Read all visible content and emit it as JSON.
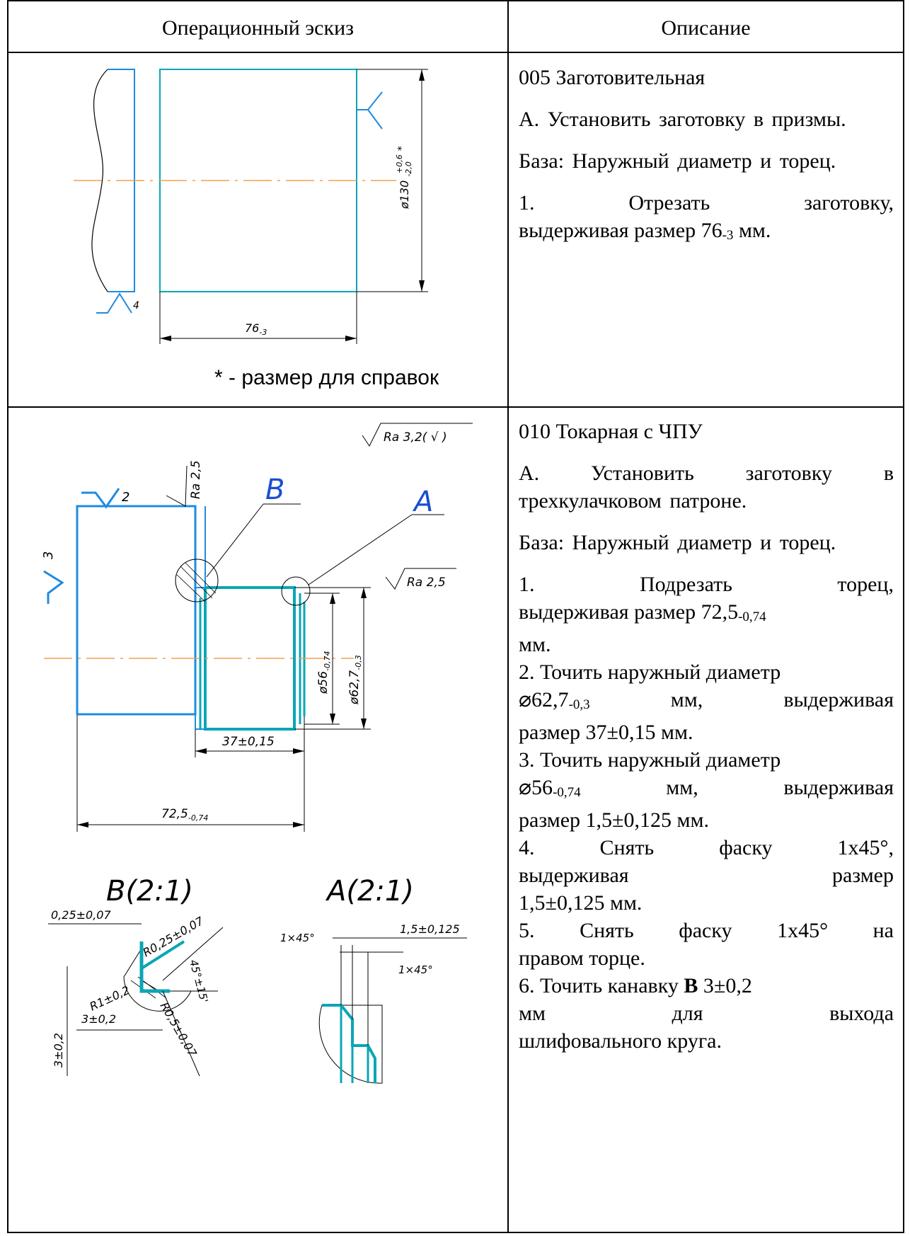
{
  "header": {
    "sketch": "Операционный эскиз",
    "description": "Описание"
  },
  "op005": {
    "title": "005  Заготовительная",
    "step_a": "А. Установить заготовку в призмы.",
    "base": "База: Наружный диаметр и торец.",
    "step1_a": "1.",
    "step1_b": "Отрезать",
    "step1_c": "заготовку,",
    "step1_d": "выдерживая размер 76",
    "step1_sub": "-3",
    "step1_e": " мм.",
    "sketch": {
      "dim_diameter": "ø130",
      "dim_tol_up": "+0,6",
      "dim_tol_low": "-2,0",
      "dim_star": "*",
      "dim_length": "76",
      "dim_length_sub": "-3",
      "rough": "4"
    },
    "note": "* - размер для справок"
  },
  "op010": {
    "title": "010 Токарная с ЧПУ",
    "step_a": "А. Установить заготовку в трехкулачковом патроне.",
    "base": "База: Наружный диаметр и торец.",
    "s1_a": "1.",
    "s1_b": "Подрезать",
    "s1_c": "торец,",
    "s1_d": "выдерживая размер 72,5",
    "s1_sub": "-0,74",
    "s1_e": "мм.",
    "s2_a": "2. Точить наружный диаметр",
    "s2_b": "⌀62,7",
    "s2_sub": "-0,3",
    "s2_c": "мм,",
    "s2_d": "выдерживая",
    "s2_e": "размер 37±0,15 мм.",
    "s3_a": "3. Точить наружный диаметр",
    "s3_b": "⌀56",
    "s3_sub": "-0,74",
    "s3_c": "мм,",
    "s3_d": "выдерживая",
    "s3_e": "размер 1,5±0,125  мм.",
    "s4_a": "4.",
    "s4_b": "Снять",
    "s4_c": "фаску",
    "s4_d": "1х45°,",
    "s4_e": "выдерживая",
    "s4_f": "размер",
    "s4_g": "1,5±0,125 мм.",
    "s5_a": "5. Снять фаску 1х45° на",
    "s5_b": "правом торце.",
    "s6_a": "6. Точить канавку ",
    "s6_bold": "В",
    "s6_b": " 3±0,2",
    "s6_c": "мм",
    "s6_d": "для",
    "s6_e": "выхода",
    "s6_f": "шлифовального круга.",
    "sketch": {
      "rough_top": "Ra  3,2(  √ )",
      "rough_face": "Ra  2,5",
      "rough_dia": "Ra  2,5",
      "label_b": "B",
      "label_a": "A",
      "rough_2": "2",
      "rough_3": "3",
      "dim_56": "ø56",
      "dim_56_sub": "-0,74",
      "dim_627": "ø62,7",
      "dim_627_sub": "-0,3",
      "dim_37": "37±0,15",
      "dim_725": "72,5",
      "dim_725_sub": "-0,74",
      "view_b": "B(2:1)",
      "view_a": "A(2:1)",
      "b_025": "0,25±0,07",
      "b_r025": "R0,25±0,07",
      "b_45": "45°±15'",
      "b_r1": "R1±0,2",
      "b_3": "3±0,2",
      "b_3v": "3±0,2",
      "b_r05": "R0,5±0,07",
      "a_1x45_l": "1×45°",
      "a_15": "1,5±0,125",
      "a_1x45_r": "1×45°"
    }
  }
}
